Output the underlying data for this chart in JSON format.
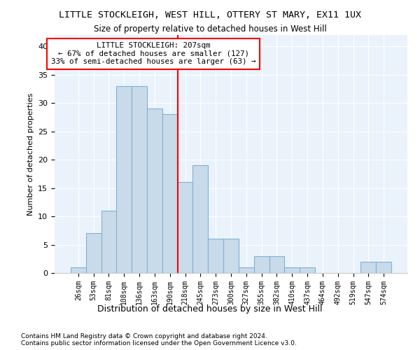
{
  "title": "LITTLE STOCKLEIGH, WEST HILL, OTTERY ST MARY, EX11 1UX",
  "subtitle": "Size of property relative to detached houses in West Hill",
  "xlabel": "Distribution of detached houses by size in West Hill",
  "ylabel": "Number of detached properties",
  "footnote": "Contains HM Land Registry data © Crown copyright and database right 2024.\nContains public sector information licensed under the Open Government Licence v3.0.",
  "categories": [
    "26sqm",
    "53sqm",
    "81sqm",
    "108sqm",
    "136sqm",
    "163sqm",
    "190sqm",
    "218sqm",
    "245sqm",
    "273sqm",
    "300sqm",
    "327sqm",
    "355sqm",
    "382sqm",
    "410sqm",
    "437sqm",
    "464sqm",
    "492sqm",
    "519sqm",
    "547sqm",
    "574sqm"
  ],
  "values": [
    1,
    7,
    11,
    33,
    33,
    29,
    28,
    16,
    19,
    6,
    6,
    1,
    3,
    3,
    1,
    1,
    0,
    0,
    0,
    2,
    2
  ],
  "bar_color": "#c9daea",
  "bar_edge_color": "#7fb3d3",
  "background_color": "#eaf3fb",
  "vline_x": 7.0,
  "vline_color": "red",
  "annotation_title": "LITTLE STOCKLEIGH: 207sqm",
  "annotation_line1": "← 67% of detached houses are smaller (127)",
  "annotation_line2": "33% of semi-detached houses are larger (63) →",
  "annotation_box_color": "white",
  "annotation_box_edge": "red",
  "ylim": [
    0,
    42
  ],
  "yticks": [
    0,
    5,
    10,
    15,
    20,
    25,
    30,
    35,
    40
  ]
}
